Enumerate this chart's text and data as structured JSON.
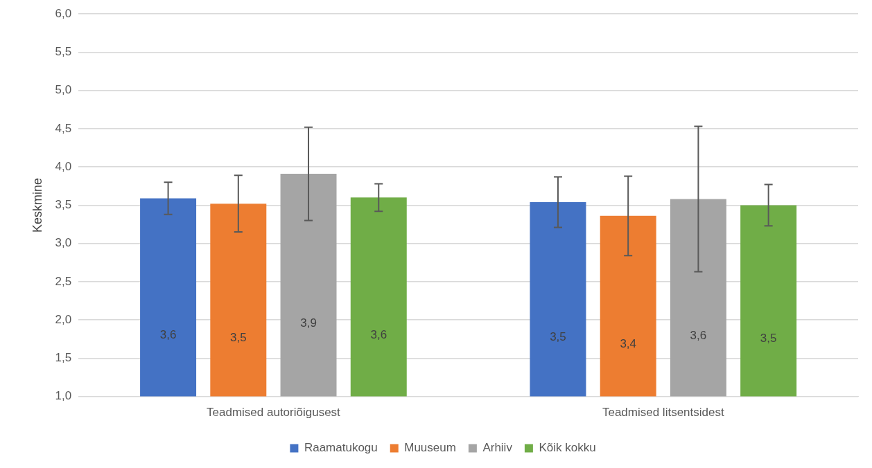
{
  "chart_data": {
    "type": "bar",
    "ylabel": "Keskmine",
    "categories": [
      "Teadmised autoriõigusest",
      "Teadmised litsentsidest"
    ],
    "series": [
      {
        "name": "Raamatukogu",
        "color": "#4472c4",
        "values": [
          3.59,
          3.54
        ],
        "errors": [
          0.21,
          0.33
        ],
        "value_labels": [
          "3,6",
          "3,5"
        ]
      },
      {
        "name": "Muuseum",
        "color": "#ed7d31",
        "values": [
          3.52,
          3.36
        ],
        "errors": [
          0.37,
          0.52
        ],
        "value_labels": [
          "3,5",
          "3,4"
        ]
      },
      {
        "name": "Arhiiv",
        "color": "#a5a5a5",
        "values": [
          3.91,
          3.58
        ],
        "errors": [
          0.61,
          0.95
        ],
        "value_labels": [
          "3,9",
          "3,6"
        ]
      },
      {
        "name": "Kõik kokku",
        "color": "#70ad47",
        "values": [
          3.6,
          3.5
        ],
        "errors": [
          0.18,
          0.27
        ],
        "value_labels": [
          "3,6",
          "3,5"
        ]
      }
    ],
    "ylim": [
      1,
      6
    ],
    "yticks": [
      {
        "value": 1,
        "label": "1,0"
      },
      {
        "value": 1.5,
        "label": "1,5"
      },
      {
        "value": 2,
        "label": "2,0"
      },
      {
        "value": 2.5,
        "label": "2,5"
      },
      {
        "value": 3,
        "label": "3,0"
      },
      {
        "value": 3.5,
        "label": "3,5"
      },
      {
        "value": 4,
        "label": "4,0"
      },
      {
        "value": 4.5,
        "label": "4,5"
      },
      {
        "value": 5,
        "label": "5,0"
      },
      {
        "value": 5.5,
        "label": "5,5"
      },
      {
        "value": 6,
        "label": "6,0"
      }
    ],
    "grid": "y",
    "legend": "bottom"
  }
}
